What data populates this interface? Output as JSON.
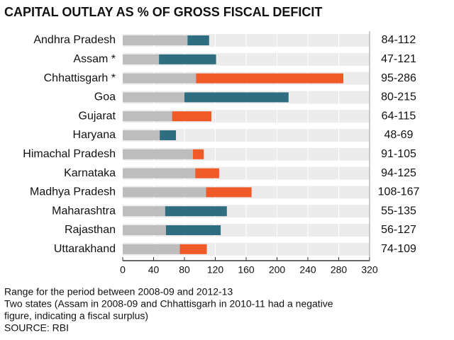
{
  "chart_data": {
    "type": "range-bar",
    "title": "CAPITAL OUTLAY AS % OF GROSS FISCAL DEFICIT",
    "categories": [
      "Andhra Pradesh",
      "Assam *",
      "Chhattisgarh *",
      "Goa",
      "Gujarat",
      "Haryana",
      "Himachal Pradesh",
      "Karnataka",
      "Madhya Pradesh",
      "Maharashtra",
      "Rajasthan",
      "Uttarakhand"
    ],
    "low": [
      84,
      47,
      95,
      80,
      64,
      48,
      91,
      94,
      108,
      55,
      56,
      74
    ],
    "high": [
      112,
      121,
      286,
      215,
      115,
      69,
      105,
      125,
      167,
      135,
      127,
      109
    ],
    "range_labels": [
      "84-112",
      "47-121",
      "95-286",
      "80-215",
      "64-115",
      "48-69",
      "91-105",
      "94-125",
      "108-167",
      "55-135",
      "56-127",
      "74-109"
    ],
    "base_color": "#bdbdbd",
    "colors": [
      "#2e6e80",
      "#2e6e80",
      "#f05a28",
      "#2e6e80",
      "#f05a28",
      "#2e6e80",
      "#f05a28",
      "#f05a28",
      "#f05a28",
      "#2e6e80",
      "#2e6e80",
      "#f05a28"
    ],
    "xlim": [
      0,
      320
    ],
    "xticks": [
      0,
      40,
      80,
      120,
      160,
      200,
      240,
      280,
      320
    ],
    "notes": [
      "Range for the period between 2008-09 and 2012-13",
      "Two states (Assam in 2008-09 and Chhattisgarh in 2010-11 had a negative",
      "figure, indicating a fiscal surplus)",
      "SOURCE: RBI"
    ]
  }
}
